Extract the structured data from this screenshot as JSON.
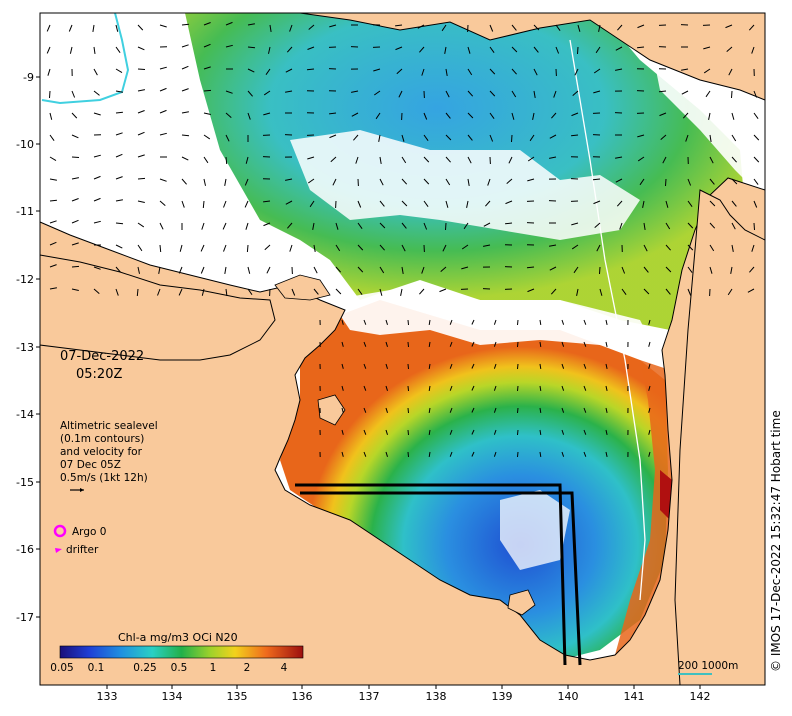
{
  "map": {
    "date": "07-Dec-2022",
    "time": "05:20Z",
    "altimetry_note": [
      "Altimetric sealevel",
      "(0.1m contours)",
      "and velocity for",
      "07 Dec 05Z",
      "0.5m/s (1kt 12h)"
    ],
    "argo_label": "Argo 0",
    "drifter_label": "drifter",
    "colorbar_title": "Chl-a mg/m3 OCi N20",
    "colorbar_ticks": [
      "0.05",
      "0.1",
      "0.25",
      "0.5",
      "1",
      "2",
      "4"
    ],
    "scale_bar_label": "200  1000m",
    "credit": "© IMOS 17-Dec-2022 15:32:47 Hobart time",
    "lon_ticks": [
      "133",
      "134",
      "135",
      "136",
      "137",
      "138",
      "139",
      "140",
      "141",
      "142"
    ],
    "lat_ticks": [
      "-9",
      "-10",
      "-11",
      "-12",
      "-13",
      "-14",
      "-15",
      "-16",
      "-17"
    ],
    "colors": {
      "land": "#f9c99b",
      "argo": "#ff00ff",
      "drifter": "#ff00ff",
      "scale_bar": "#40c0c0"
    }
  }
}
